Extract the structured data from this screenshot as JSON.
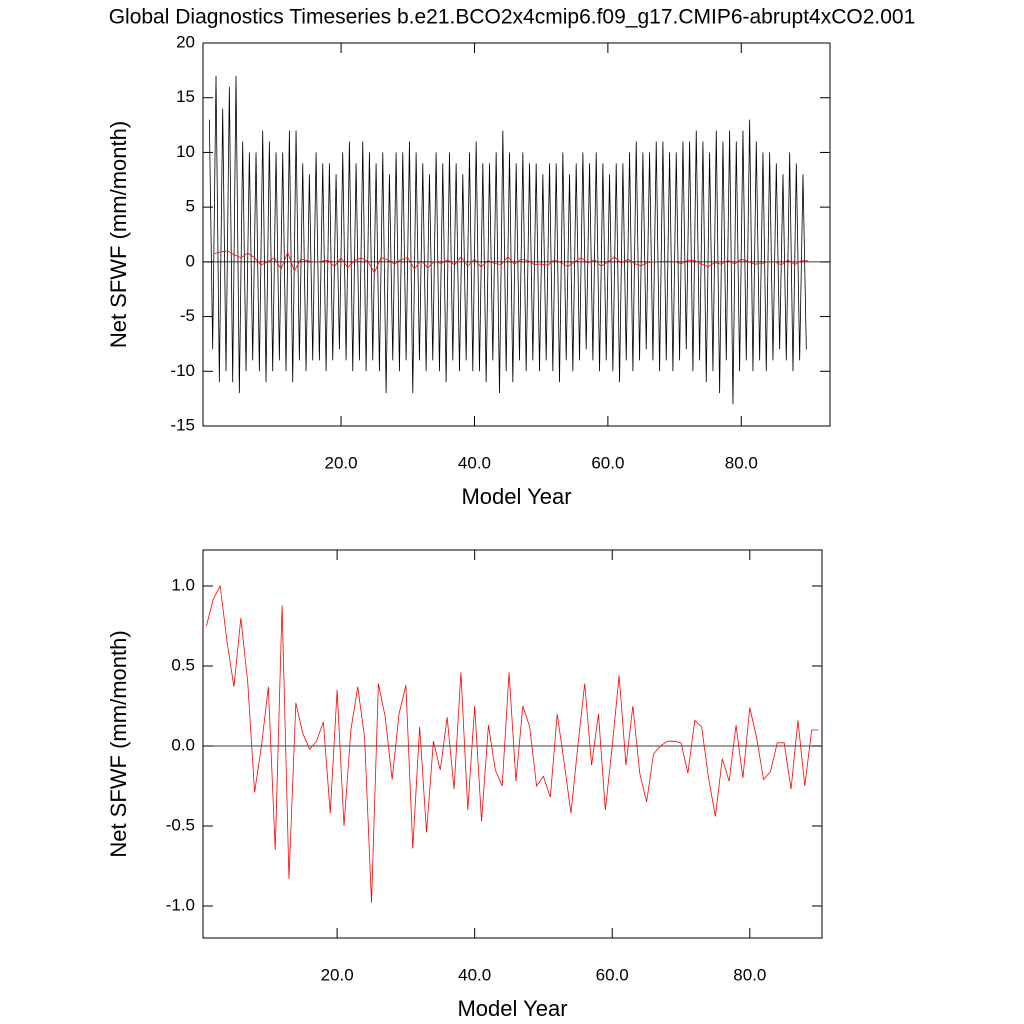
{
  "chart_data": [
    {
      "type": "line",
      "title": "Global Diagnostics Timeseries b.e21.BCO2x4cmip6.f09_g17.CMIP6-abrupt4xCO2.001",
      "xlabel": "Model Year",
      "ylabel": "Net SFWF (mm/month)",
      "xlim": [
        -0.7,
        93.3
      ],
      "ylim": [
        -15,
        20
      ],
      "xticks": [
        {
          "value": 20,
          "label": "20.0"
        },
        {
          "value": 40,
          "label": "40.0"
        },
        {
          "value": 60,
          "label": "60.0"
        },
        {
          "value": 80,
          "label": "80.0"
        }
      ],
      "yticks": [
        -15,
        -10,
        -5,
        0,
        5,
        10,
        15,
        20
      ],
      "series": [
        {
          "color": "#000000",
          "x": [
            0.25,
            0.75,
            1.25,
            1.75,
            2.25,
            2.75,
            3.25,
            3.75,
            4.25,
            4.75,
            5.25,
            5.75,
            6.25,
            6.75,
            7.25,
            7.75,
            8.25,
            8.75,
            9.25,
            9.75,
            10.25,
            10.75,
            11.25,
            11.75,
            12.25,
            12.75,
            13.25,
            13.75,
            14.25,
            14.75,
            15.25,
            15.75,
            16.25,
            16.75,
            17.25,
            17.75,
            18.25,
            18.75,
            19.25,
            19.75,
            20.25,
            20.75,
            21.25,
            21.75,
            22.25,
            22.75,
            23.25,
            23.75,
            24.25,
            24.75,
            25.25,
            25.75,
            26.25,
            26.75,
            27.25,
            27.75,
            28.25,
            28.75,
            29.25,
            29.75,
            30.25,
            30.75,
            31.25,
            31.75,
            32.25,
            32.75,
            33.25,
            33.75,
            34.25,
            34.75,
            35.25,
            35.75,
            36.25,
            36.75,
            37.25,
            37.75,
            38.25,
            38.75,
            39.25,
            39.75,
            40.25,
            40.75,
            41.25,
            41.75,
            42.25,
            42.75,
            43.25,
            43.75,
            44.25,
            44.75,
            45.25,
            45.75,
            46.25,
            46.75,
            47.25,
            47.75,
            48.25,
            48.75,
            49.25,
            49.75,
            50.25,
            50.75,
            51.25,
            51.75,
            52.25,
            52.75,
            53.25,
            53.75,
            54.25,
            54.75,
            55.25,
            55.75,
            56.25,
            56.75,
            57.25,
            57.75,
            58.25,
            58.75,
            59.25,
            59.75,
            60.25,
            60.75,
            61.25,
            61.75,
            62.25,
            62.75,
            63.25,
            63.75,
            64.25,
            64.75,
            65.25,
            65.75,
            66.25,
            66.75,
            67.25,
            67.75,
            68.25,
            68.75,
            69.25,
            69.75,
            70.25,
            70.75,
            71.25,
            71.75,
            72.25,
            72.75,
            73.25,
            73.75,
            74.25,
            74.75,
            75.25,
            75.75,
            76.25,
            76.75,
            77.25,
            77.75,
            78.25,
            78.75,
            79.25,
            79.75,
            80.25,
            80.75,
            81.25,
            81.75,
            82.25,
            82.75,
            83.25,
            83.75,
            84.25,
            84.75,
            85.25,
            85.75,
            86.25,
            86.75,
            87.25,
            87.75,
            88.25,
            88.75,
            89.25,
            89.75
          ],
          "values": [
            13,
            -8,
            17,
            -11,
            14,
            -10,
            16,
            -11,
            17,
            -12,
            11,
            -10,
            10,
            -9,
            10,
            -10,
            12,
            -11,
            11,
            -10,
            10,
            -9,
            10,
            -10,
            12,
            -11,
            12,
            -9,
            9,
            -10,
            8,
            -9,
            10,
            -9,
            9,
            -10,
            9,
            -9,
            8,
            -8,
            10,
            -9,
            11,
            -10,
            9,
            -9,
            11,
            -10,
            10,
            -9,
            9,
            -10,
            10,
            -12,
            8,
            -9,
            10,
            -10,
            10,
            -9,
            11,
            -12,
            10,
            -9,
            9,
            -10,
            8,
            -9,
            10,
            -10,
            9,
            -11,
            10,
            -9,
            9,
            -10,
            8,
            -9,
            10,
            -10,
            11,
            -10,
            9,
            -11,
            9,
            -9,
            10,
            -12,
            12,
            -10,
            10,
            -11,
            9,
            -9,
            10,
            -10,
            9,
            -9,
            9,
            -10,
            8,
            -9,
            9,
            -10,
            9,
            -11,
            10,
            -9,
            8,
            -10,
            9,
            -9,
            10,
            -8,
            9,
            -9,
            10,
            -10,
            9,
            -9,
            8,
            -10,
            9,
            -11,
            9,
            -9,
            10,
            -10,
            11,
            -9,
            10,
            -8,
            10,
            -9,
            11,
            -10,
            11,
            -9,
            10,
            -10,
            10,
            -9,
            11,
            -8,
            11,
            -10,
            12,
            -9,
            11,
            -11,
            10,
            -10,
            12,
            -12,
            11,
            -9,
            12,
            -13,
            11,
            -10,
            12,
            -9,
            13,
            -10,
            11,
            -9,
            10,
            -10,
            10,
            -9,
            9,
            -8,
            8,
            -9,
            10,
            -10,
            9,
            -9,
            8,
            -8
          ]
        },
        {
          "color": "#ff0000",
          "x": [
            1,
            2,
            3,
            4,
            5,
            6,
            7,
            8,
            9,
            10,
            11,
            12,
            13,
            14,
            15,
            16,
            17,
            18,
            19,
            20,
            21,
            22,
            23,
            24,
            25,
            26,
            27,
            28,
            29,
            30,
            31,
            32,
            33,
            34,
            35,
            36,
            37,
            38,
            39,
            40,
            41,
            42,
            43,
            44,
            45,
            46,
            47,
            48,
            49,
            50,
            51,
            52,
            53,
            54,
            55,
            56,
            57,
            58,
            59,
            60,
            61,
            62,
            63,
            64,
            65,
            66,
            67,
            68,
            69,
            70,
            71,
            72,
            73,
            74,
            75,
            76,
            77,
            78,
            79,
            80,
            81,
            82,
            83,
            84,
            85,
            86,
            87,
            88,
            89,
            90
          ],
          "values": [
            0.75,
            0.92,
            1.0,
            0.65,
            0.37,
            0.8,
            0.4,
            -0.29,
            0.0,
            0.37,
            -0.65,
            0.88,
            -0.83,
            0.27,
            0.08,
            -0.02,
            0.03,
            0.15,
            -0.42,
            0.35,
            -0.5,
            0.1,
            0.37,
            0.05,
            -0.98,
            0.39,
            0.18,
            -0.21,
            0.2,
            0.38,
            -0.64,
            0.12,
            -0.54,
            0.03,
            -0.15,
            0.18,
            -0.27,
            0.46,
            -0.4,
            0.25,
            -0.47,
            0.13,
            -0.15,
            -0.25,
            0.46,
            -0.22,
            0.25,
            0.12,
            -0.25,
            -0.19,
            -0.32,
            0.2,
            -0.1,
            -0.42,
            0.0,
            0.39,
            -0.12,
            0.2,
            -0.4,
            0.0,
            0.44,
            -0.12,
            0.25,
            -0.17,
            -0.35,
            -0.05,
            0.0,
            0.03,
            0.03,
            0.02,
            -0.17,
            0.16,
            0.12,
            -0.2,
            -0.44,
            -0.08,
            -0.22,
            0.13,
            -0.2,
            0.24,
            0.05,
            -0.21,
            -0.16,
            0.02,
            0.02,
            -0.27,
            0.16,
            -0.25,
            0.1,
            0.1
          ]
        }
      ]
    },
    {
      "type": "line",
      "xlabel": "Model Year",
      "ylabel": "Net SFWF (mm/month)",
      "xlim": [
        0.5,
        90.5
      ],
      "ylim": [
        -1.2,
        1.225
      ],
      "xticks": [
        {
          "value": 20,
          "label": "20.0"
        },
        {
          "value": 40,
          "label": "40.0"
        },
        {
          "value": 60,
          "label": "60.0"
        },
        {
          "value": 80,
          "label": "80.0"
        }
      ],
      "yticks": [
        {
          "value": -1,
          "label": "-1.0"
        },
        {
          "value": -0.5,
          "label": "-0.5"
        },
        {
          "value": 0,
          "label": "0.0"
        },
        {
          "value": 0.5,
          "label": "0.5"
        },
        {
          "value": 1,
          "label": "1.0"
        }
      ],
      "series": [
        {
          "color": "#ff0000",
          "x": [
            1,
            2,
            3,
            4,
            5,
            6,
            7,
            8,
            9,
            10,
            11,
            12,
            13,
            14,
            15,
            16,
            17,
            18,
            19,
            20,
            21,
            22,
            23,
            24,
            25,
            26,
            27,
            28,
            29,
            30,
            31,
            32,
            33,
            34,
            35,
            36,
            37,
            38,
            39,
            40,
            41,
            42,
            43,
            44,
            45,
            46,
            47,
            48,
            49,
            50,
            51,
            52,
            53,
            54,
            55,
            56,
            57,
            58,
            59,
            60,
            61,
            62,
            63,
            64,
            65,
            66,
            67,
            68,
            69,
            70,
            71,
            72,
            73,
            74,
            75,
            76,
            77,
            78,
            79,
            80,
            81,
            82,
            83,
            84,
            85,
            86,
            87,
            88,
            89,
            90
          ],
          "values": [
            0.75,
            0.92,
            1.0,
            0.65,
            0.37,
            0.8,
            0.4,
            -0.29,
            0.0,
            0.37,
            -0.65,
            0.88,
            -0.83,
            0.27,
            0.08,
            -0.02,
            0.03,
            0.15,
            -0.42,
            0.35,
            -0.5,
            0.1,
            0.37,
            0.05,
            -0.98,
            0.39,
            0.18,
            -0.21,
            0.2,
            0.38,
            -0.64,
            0.12,
            -0.54,
            0.03,
            -0.15,
            0.18,
            -0.27,
            0.46,
            -0.4,
            0.25,
            -0.47,
            0.13,
            -0.15,
            -0.25,
            0.46,
            -0.22,
            0.25,
            0.12,
            -0.25,
            -0.19,
            -0.32,
            0.2,
            -0.1,
            -0.42,
            0.0,
            0.39,
            -0.12,
            0.2,
            -0.4,
            0.0,
            0.44,
            -0.12,
            0.25,
            -0.17,
            -0.35,
            -0.05,
            0.0,
            0.03,
            0.03,
            0.02,
            -0.17,
            0.16,
            0.12,
            -0.2,
            -0.44,
            -0.08,
            -0.22,
            0.13,
            -0.2,
            0.24,
            0.05,
            -0.21,
            -0.16,
            0.02,
            0.02,
            -0.27,
            0.16,
            -0.25,
            0.1,
            0.1
          ]
        }
      ]
    }
  ]
}
